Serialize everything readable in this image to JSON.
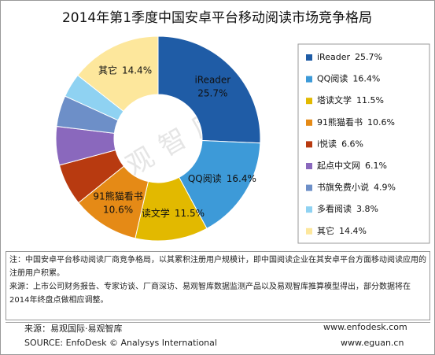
{
  "chart_data": {
    "type": "donut",
    "title": "2014年第1季度中国安卓平台移动阅读市场竞争格局",
    "categories": [
      "iReader",
      "QQ阅读",
      "塔读文学",
      "91熊猫看书",
      "i悦读",
      "起点中文网",
      "书旗免费小说",
      "多看阅读",
      "其它"
    ],
    "values": [
      25.7,
      16.4,
      11.5,
      10.6,
      6.6,
      6.1,
      4.9,
      3.8,
      14.4
    ],
    "value_labels": [
      "25.7%",
      "16.4%",
      "11.5%",
      "10.6%",
      "6.6%",
      "6.1%",
      "4.9%",
      "3.8%",
      "14.4%"
    ],
    "colors": [
      "#1f5ca6",
      "#3d9ad8",
      "#e2b900",
      "#e58a16",
      "#b83a10",
      "#8a68bd",
      "#6d8fc8",
      "#8fd2f2",
      "#fde79c"
    ],
    "legend": "right",
    "watermark": "易观智库"
  },
  "notes": [
    "注：中国安卓平台移动阅读厂商竞争格局，以其累积注册用户规模计，即中国阅读企业在其安卓平台方面移动阅读应用的注册用户积累。",
    "来源：上市公司财务报告、专家访谈、厂商深访、易观智库数据监测产品以及易观智库推算模型得出，部分数据将在2014年终盘点做相应调整。"
  ],
  "footer": {
    "source_cn": "来源：易观国际·易观智库",
    "source_en": "SOURCE: EnfoDesk © Analysys International",
    "url1": "www.enfodesk.com",
    "url2": "www.eguan.cn"
  }
}
